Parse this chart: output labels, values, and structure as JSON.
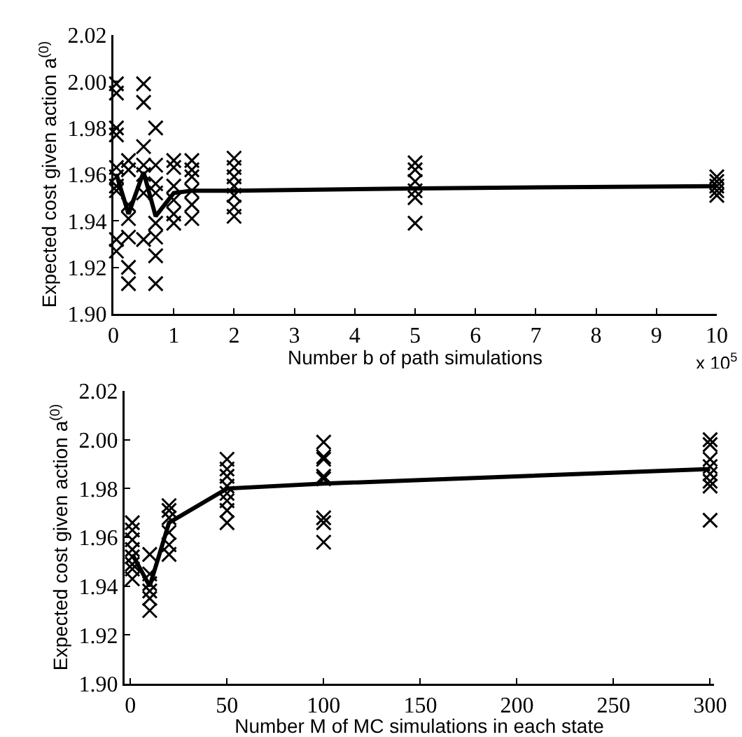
{
  "chart_data": [
    {
      "type": "scatter",
      "xlabel": "Number b of path simulations",
      "ylabel": "Expected cost given action a$^{(0)}$",
      "annotations": [
        "x 10$^{5}$"
      ],
      "xlim": [
        0,
        10
      ],
      "xticks": [
        0,
        1,
        2,
        3,
        4,
        5,
        6,
        7,
        8,
        9,
        10
      ],
      "ylim": [
        1.9,
        2.02
      ],
      "yticks": [
        {
          "value": 1.9,
          "label": "1.90"
        },
        {
          "value": 1.92,
          "label": "1.92"
        },
        {
          "value": 1.94,
          "label": "1.94"
        },
        {
          "value": 1.96,
          "label": "1.96"
        },
        {
          "value": 1.98,
          "label": "1.98"
        },
        {
          "value": 2.0,
          "label": "2.00"
        },
        {
          "value": 2.02,
          "label": "2.02"
        }
      ],
      "series": [
        {
          "type": "scatter",
          "marker": "cross",
          "color": "#000000",
          "x": [
            0.05,
            0.05,
            0.05,
            0.05,
            0.05,
            0.05,
            0.05,
            0.05,
            0.05,
            0.05,
            0.25,
            0.25,
            0.25,
            0.25,
            0.25,
            0.25,
            0.25,
            0.5,
            0.5,
            0.5,
            0.5,
            0.5,
            0.5,
            0.5,
            0.7,
            0.7,
            0.7,
            0.7,
            0.7,
            0.7,
            0.7,
            0.7,
            1,
            1,
            1,
            1,
            1,
            1,
            1.3,
            1.3,
            1.3,
            1.3,
            1.3,
            1.3,
            2,
            2,
            2,
            2,
            2,
            2,
            2,
            5,
            5,
            5,
            5,
            5,
            5,
            10,
            10,
            10,
            10,
            10
          ],
          "values": [
            1.999,
            1.995,
            1.98,
            1.977,
            1.963,
            1.959,
            1.955,
            1.953,
            1.932,
            1.927,
            1.966,
            1.962,
            1.947,
            1.941,
            1.933,
            1.92,
            1.913,
            1.999,
            1.991,
            1.972,
            1.964,
            1.96,
            1.952,
            1.932,
            1.98,
            1.964,
            1.956,
            1.952,
            1.939,
            1.933,
            1.925,
            1.913,
            1.966,
            1.963,
            1.955,
            1.949,
            1.943,
            1.939,
            1.966,
            1.962,
            1.959,
            1.953,
            1.947,
            1.941,
            1.967,
            1.963,
            1.959,
            1.955,
            1.951,
            1.946,
            1.942,
            1.965,
            1.962,
            1.957,
            1.953,
            1.95,
            1.939,
            1.959,
            1.957,
            1.955,
            1.953,
            1.951
          ]
        },
        {
          "type": "line",
          "marker": "none",
          "line_style": "solid",
          "color": "#000000",
          "x": [
            0.05,
            0.25,
            0.5,
            0.7,
            1,
            1.3,
            2,
            5,
            10
          ],
          "values": [
            1.96,
            1.943,
            1.961,
            1.942,
            1.952,
            1.953,
            1.953,
            1.954,
            1.955
          ]
        }
      ]
    },
    {
      "type": "scatter",
      "xlabel": "Number M of MC simulations in each state",
      "ylabel": "Expected cost given action a$^{(0)}$",
      "xlim": [
        -3,
        302
      ],
      "xticks": [
        0,
        50,
        100,
        150,
        200,
        250,
        300
      ],
      "ylim": [
        1.9,
        2.02
      ],
      "yticks": [
        {
          "value": 1.9,
          "label": "1.90"
        },
        {
          "value": 1.92,
          "label": "1.92"
        },
        {
          "value": 1.94,
          "label": "1.94"
        },
        {
          "value": 1.96,
          "label": "1.96"
        },
        {
          "value": 1.98,
          "label": "1.98"
        },
        {
          "value": 2.0,
          "label": "2.00"
        },
        {
          "value": 2.02,
          "label": "2.02"
        }
      ],
      "series": [
        {
          "type": "scatter",
          "marker": "cross",
          "color": "#000000",
          "x": [
            1,
            1,
            1,
            1,
            1,
            1,
            1,
            1,
            10,
            10,
            10,
            10,
            10,
            10,
            20,
            20,
            20,
            20,
            20,
            20,
            50,
            50,
            50,
            50,
            50,
            50,
            50,
            50,
            100,
            100,
            100,
            100,
            100,
            100,
            100,
            100,
            300,
            300,
            300,
            300,
            300,
            300,
            300,
            300
          ],
          "values": [
            1.966,
            1.963,
            1.959,
            1.955,
            1.952,
            1.949,
            1.947,
            1.943,
            1.953,
            1.945,
            1.941,
            1.938,
            1.935,
            1.93,
            1.973,
            1.971,
            1.968,
            1.962,
            1.957,
            1.953,
            1.992,
            1.988,
            1.985,
            1.981,
            1.978,
            1.975,
            1.971,
            1.966,
            1.999,
            1.993,
            1.992,
            1.985,
            1.984,
            1.968,
            1.966,
            1.958,
            2.0,
            1.998,
            1.992,
            1.989,
            1.986,
            1.983,
            1.981,
            1.967
          ]
        },
        {
          "type": "line",
          "marker": "none",
          "line_style": "solid",
          "color": "#000000",
          "x": [
            1,
            10,
            20,
            50,
            100,
            300
          ],
          "values": [
            1.953,
            1.94,
            1.966,
            1.98,
            1.982,
            1.988
          ]
        }
      ]
    }
  ]
}
